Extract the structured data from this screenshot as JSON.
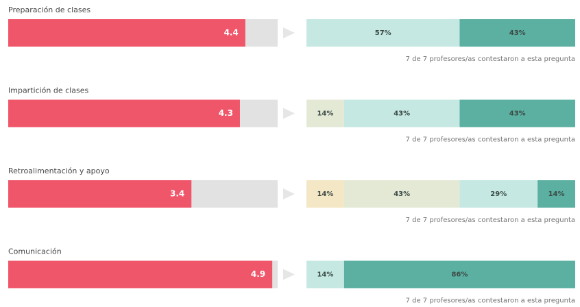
{
  "chart_data": [
    {
      "type": "score-bar",
      "title": "Preparación de clases",
      "value": 4.4,
      "xlim": [
        0,
        5
      ],
      "color": "#f0566a",
      "segments": {
        "values": [
          57,
          43
        ],
        "value_labels": [
          "57%",
          "43%"
        ],
        "colors": [
          "#c5e8e2",
          "#5bb0a1"
        ]
      },
      "note": "7 de 7 profesores/as contestaron a esta pregunta"
    },
    {
      "type": "score-bar",
      "title": "Impartición de clases",
      "value": 4.3,
      "xlim": [
        0,
        5
      ],
      "color": "#f0566a",
      "segments": {
        "values": [
          14,
          43,
          43
        ],
        "value_labels": [
          "14%",
          "43%",
          "43%"
        ],
        "colors": [
          "#e4e9d6",
          "#c5e8e2",
          "#5bb0a1"
        ]
      },
      "note": "7 de 7 profesores/as contestaron a esta pregunta"
    },
    {
      "type": "score-bar",
      "title": "Retroalimentación y apoyo",
      "value": 3.4,
      "xlim": [
        0,
        5
      ],
      "color": "#f0566a",
      "segments": {
        "values": [
          14,
          43,
          29,
          14
        ],
        "value_labels": [
          "14%",
          "43%",
          "29%",
          "14%"
        ],
        "colors": [
          "#f4e7c6",
          "#e4e9d6",
          "#c5e8e2",
          "#5bb0a1"
        ]
      },
      "note": "7 de 7 profesores/as contestaron a esta pregunta"
    },
    {
      "type": "score-bar",
      "title": "Comunicación",
      "value": 4.9,
      "xlim": [
        0,
        5
      ],
      "color": "#f0566a",
      "segments": {
        "values": [
          14,
          86
        ],
        "value_labels": [
          "14%",
          "86%"
        ],
        "colors": [
          "#c5e8e2",
          "#5bb0a1"
        ]
      },
      "note": "7 de 7 profesores/as contestaron a esta pregunta"
    }
  ]
}
